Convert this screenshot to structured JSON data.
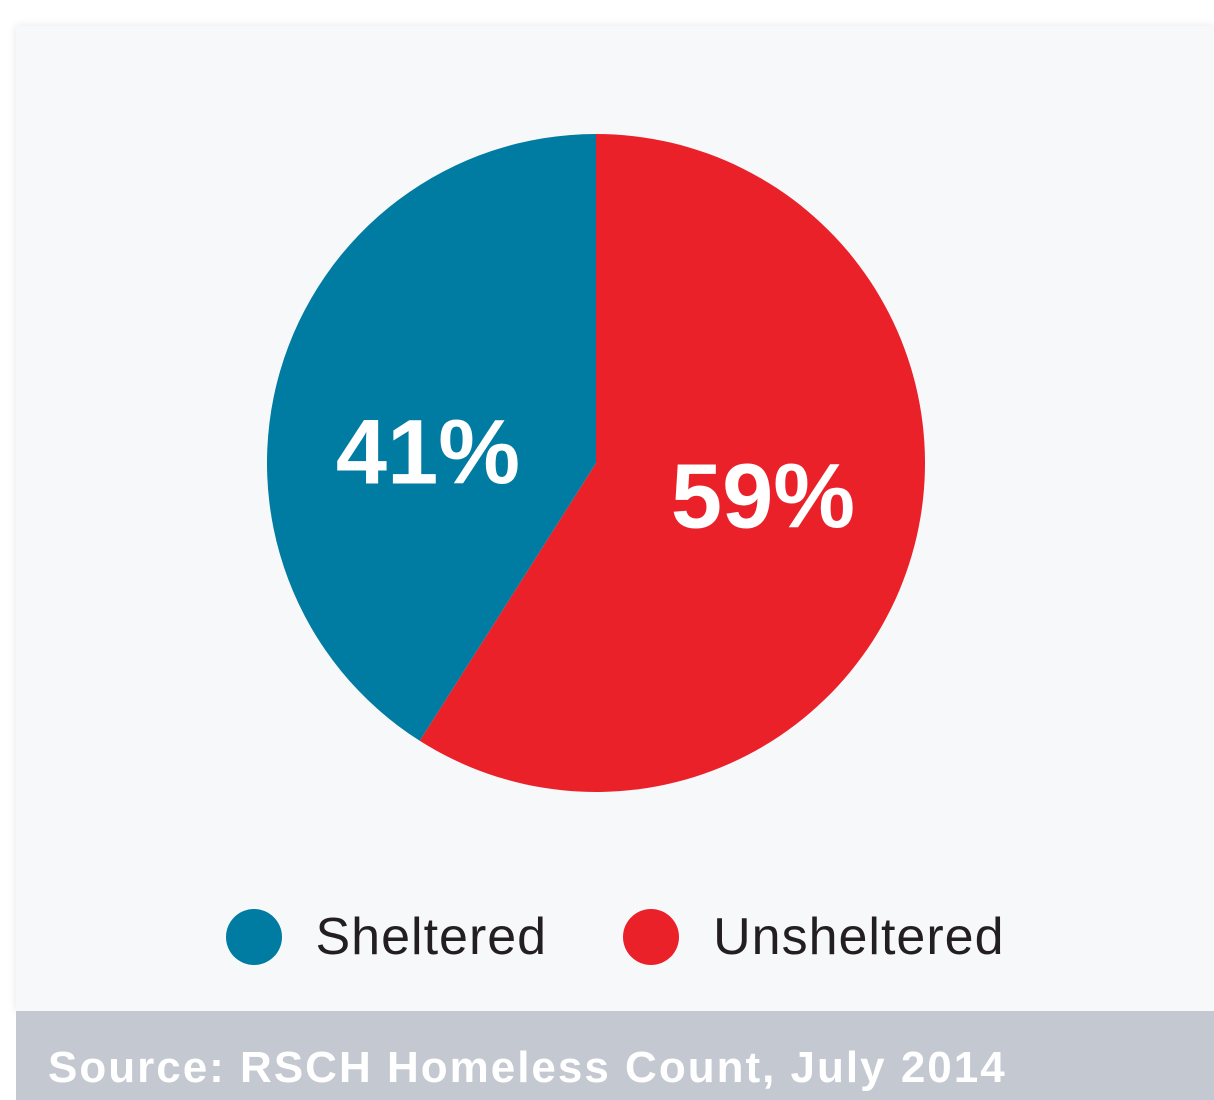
{
  "chart_data": {
    "type": "pie",
    "title": "",
    "categories": [
      "Sheltered",
      "Unsheltered"
    ],
    "values": [
      41,
      59
    ],
    "labels": [
      "41%",
      "59%"
    ],
    "colors": [
      "#007ba1",
      "#ea2129"
    ],
    "legend_position": "bottom"
  },
  "legend": [
    {
      "label": "Sheltered",
      "color": "#007ba1"
    },
    {
      "label": "Unsheltered",
      "color": "#ea2129"
    }
  ],
  "source": "Source: RSCH Homeless Count, July 2014"
}
